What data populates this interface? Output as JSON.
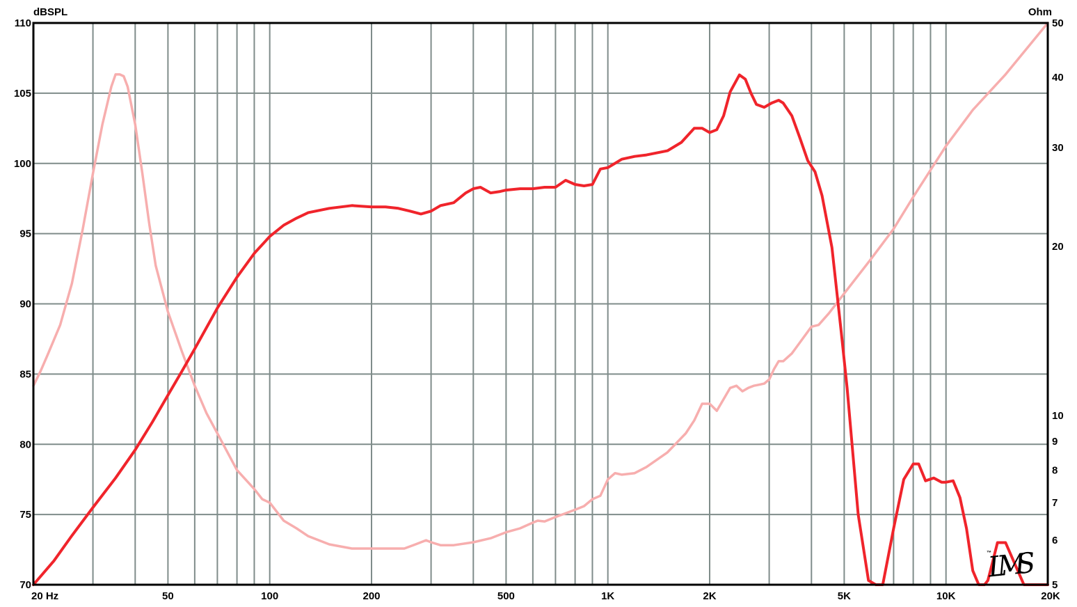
{
  "chart_data": {
    "type": "line",
    "title": "",
    "x_scale": "log",
    "xlim": [
      20,
      20000
    ],
    "left_axis": {
      "label": "dBSPL",
      "ylim": [
        70,
        110
      ]
    },
    "right_axis": {
      "label": "Ohm",
      "scale": "log",
      "ylim": [
        5,
        50
      ]
    },
    "grid": true,
    "logo": "LMS",
    "x_ticks": [
      {
        "value": 20,
        "label": "20  Hz"
      },
      {
        "value": 50,
        "label": "50"
      },
      {
        "value": 100,
        "label": "100"
      },
      {
        "value": 200,
        "label": "200"
      },
      {
        "value": 500,
        "label": "500"
      },
      {
        "value": 1000,
        "label": "1K"
      },
      {
        "value": 2000,
        "label": "2K"
      },
      {
        "value": 5000,
        "label": "5K"
      },
      {
        "value": 10000,
        "label": "10K"
      },
      {
        "value": 20000,
        "label": "20K"
      }
    ],
    "x_gridlines": [
      30,
      40,
      60,
      70,
      80,
      90,
      300,
      400,
      600,
      700,
      800,
      900,
      3000,
      4000,
      6000,
      7000,
      8000,
      9000
    ],
    "left_ticks": [
      {
        "value": 110,
        "label": "110"
      },
      {
        "value": 105,
        "label": "105"
      },
      {
        "value": 100,
        "label": "100"
      },
      {
        "value": 95,
        "label": "95"
      },
      {
        "value": 90,
        "label": "90"
      },
      {
        "value": 85,
        "label": "85"
      },
      {
        "value": 80,
        "label": "80"
      },
      {
        "value": 75,
        "label": "75"
      },
      {
        "value": 70,
        "label": "70"
      }
    ],
    "right_ticks": [
      {
        "value": 50,
        "label": "50"
      },
      {
        "value": 40,
        "label": "40"
      },
      {
        "value": 30,
        "label": "30"
      },
      {
        "value": 20,
        "label": "20"
      },
      {
        "value": 10,
        "label": "10"
      },
      {
        "value": 9,
        "label": "9"
      },
      {
        "value": 8,
        "label": "8"
      },
      {
        "value": 7,
        "label": "7"
      },
      {
        "value": 6,
        "label": "6"
      },
      {
        "value": 5,
        "label": "5"
      }
    ],
    "series": [
      {
        "axis": "left",
        "color": "#f0242b",
        "x": [
          20,
          23,
          26,
          30,
          35,
          40,
          45,
          50,
          55,
          60,
          70,
          80,
          90,
          100,
          110,
          120,
          130,
          150,
          175,
          200,
          220,
          240,
          260,
          280,
          300,
          320,
          350,
          380,
          400,
          420,
          450,
          480,
          500,
          550,
          600,
          650,
          700,
          750,
          800,
          850,
          900,
          950,
          1000,
          1100,
          1200,
          1300,
          1500,
          1650,
          1800,
          1900,
          2000,
          2100,
          2200,
          2300,
          2450,
          2550,
          2650,
          2750,
          2900,
          3050,
          3200,
          3300,
          3500,
          3700,
          3900,
          4100,
          4300,
          4600,
          4900,
          5100,
          5500,
          5900,
          6200,
          6500,
          7000,
          7500,
          8000,
          8300,
          8700,
          9200,
          9700,
          10000,
          10500,
          11000,
          11500,
          12000,
          12500,
          13000,
          13300,
          13700,
          14200,
          15000,
          17000,
          20000
        ],
        "y": [
          69.8,
          71.7,
          73.5,
          75.5,
          77.6,
          79.6,
          81.6,
          83.5,
          85.2,
          86.8,
          89.7,
          91.9,
          93.6,
          94.8,
          95.6,
          96.1,
          96.5,
          96.8,
          97.0,
          96.9,
          96.9,
          96.8,
          96.6,
          96.4,
          96.6,
          97.0,
          97.2,
          97.9,
          98.2,
          98.3,
          97.9,
          98.0,
          98.1,
          98.2,
          98.2,
          98.3,
          98.3,
          98.8,
          98.5,
          98.4,
          98.5,
          99.6,
          99.7,
          100.3,
          100.5,
          100.6,
          100.9,
          101.5,
          102.5,
          102.5,
          102.2,
          102.4,
          103.4,
          105.1,
          106.3,
          106.0,
          105.0,
          104.2,
          104.0,
          104.3,
          104.5,
          104.3,
          103.4,
          101.8,
          100.2,
          99.4,
          97.7,
          94.0,
          88.0,
          84.0,
          75.0,
          70.3,
          70.0,
          70.0,
          74.0,
          77.5,
          78.6,
          78.6,
          77.4,
          77.6,
          77.3,
          77.3,
          77.4,
          76.2,
          74.0,
          71.0,
          70.0,
          70.0,
          70.3,
          71.5,
          73.0,
          73.0,
          70.0,
          70.0
        ]
      },
      {
        "axis": "right",
        "color": "#f7aeae",
        "x": [
          20,
          21,
          22,
          24,
          26,
          28,
          30,
          32,
          34,
          35,
          36,
          37,
          38,
          40,
          42,
          44,
          46,
          50,
          55,
          60,
          65,
          70,
          80,
          90,
          95,
          100,
          110,
          120,
          130,
          150,
          175,
          200,
          220,
          250,
          270,
          290,
          300,
          320,
          350,
          400,
          450,
          500,
          550,
          600,
          620,
          650,
          700,
          750,
          800,
          850,
          900,
          950,
          1000,
          1050,
          1100,
          1200,
          1300,
          1500,
          1700,
          1800,
          1900,
          2000,
          2100,
          2200,
          2300,
          2400,
          2500,
          2600,
          2700,
          2800,
          2900,
          3000,
          3100,
          3200,
          3300,
          3500,
          3700,
          4000,
          4200,
          4500,
          5000,
          6000,
          7000,
          8000,
          10000,
          12000,
          15000,
          20000
        ],
        "y": [
          11.3,
          12.0,
          12.8,
          14.5,
          17.2,
          21.5,
          27.0,
          33.0,
          38.5,
          40.5,
          40.5,
          40.2,
          38.5,
          33.0,
          27.0,
          22.0,
          18.5,
          15.3,
          13.0,
          11.3,
          10.1,
          9.3,
          8.0,
          7.4,
          7.1,
          7.0,
          6.5,
          6.3,
          6.1,
          5.9,
          5.8,
          5.8,
          5.8,
          5.8,
          5.9,
          6.0,
          5.95,
          5.88,
          5.88,
          5.95,
          6.05,
          6.2,
          6.3,
          6.45,
          6.5,
          6.48,
          6.6,
          6.7,
          6.8,
          6.9,
          7.1,
          7.2,
          7.7,
          7.9,
          7.85,
          7.9,
          8.1,
          8.6,
          9.3,
          9.8,
          10.5,
          10.5,
          10.2,
          10.7,
          11.2,
          11.3,
          11.05,
          11.2,
          11.3,
          11.35,
          11.4,
          11.6,
          12.1,
          12.5,
          12.5,
          12.9,
          13.5,
          14.4,
          14.5,
          15.2,
          16.5,
          19.0,
          21.5,
          24.5,
          30.2,
          35.0,
          40.5,
          51.0
        ]
      }
    ]
  }
}
